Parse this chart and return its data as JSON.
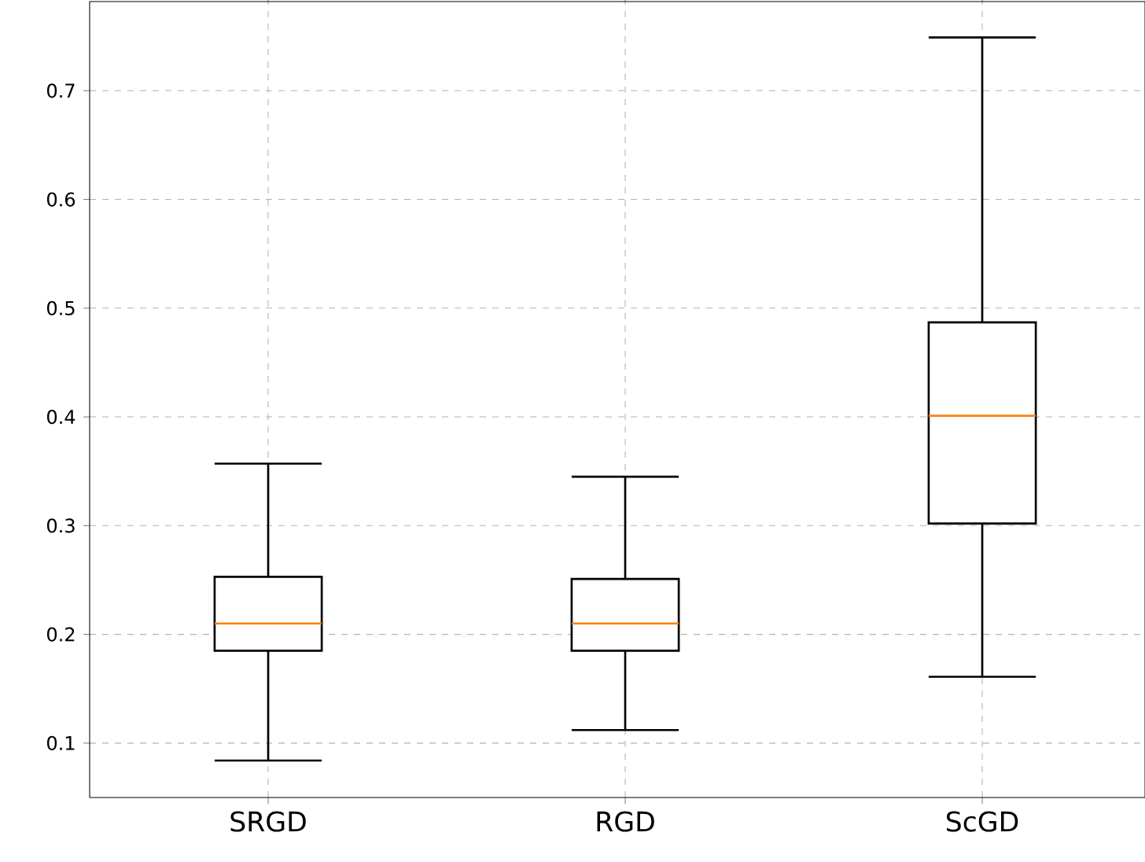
{
  "chart_data": {
    "type": "box",
    "categories": [
      "SRGD",
      "RGD",
      "ScGD"
    ],
    "color": "#000000",
    "boxes": [
      {
        "low": 0.084,
        "q1": 0.185,
        "median": 0.21,
        "q3": 0.253,
        "high": 0.357
      },
      {
        "low": 0.112,
        "q1": 0.185,
        "median": 0.21,
        "q3": 0.251,
        "high": 0.345
      },
      {
        "low": 0.161,
        "q1": 0.302,
        "median": 0.401,
        "q3": 0.487,
        "high": 0.749
      }
    ],
    "ylim": [
      0.05,
      0.782
    ],
    "yticks": [
      0.1,
      0.2,
      0.3,
      0.4,
      0.5,
      0.6,
      0.7
    ],
    "grid": true
  }
}
